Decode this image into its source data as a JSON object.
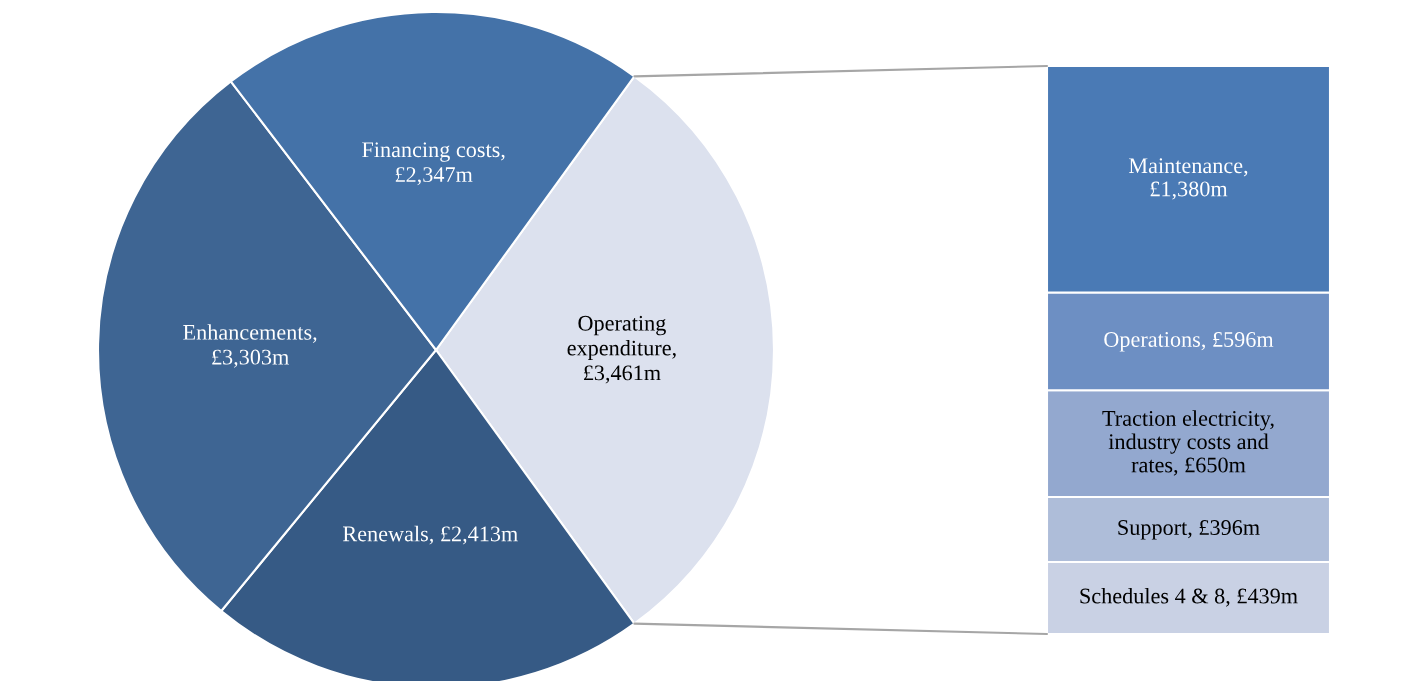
{
  "chart_data": [
    {
      "type": "pie",
      "categories": [
        null,
        null,
        null,
        null
      ],
      "values": [
        3461,
        2413,
        3303,
        2347
      ],
      "value_labels": [
        "Operating\nexpenditure,\n£3,461m",
        "Renewals, £2,413m",
        "Enhancements,\n£3,303m",
        "Financing costs,\n£2,347m"
      ],
      "colors": [
        "#dce1ee",
        "#365a85",
        "#3e6593",
        "#4472a8"
      ]
    },
    {
      "type": "bar",
      "stacked": true,
      "categories": [
        null
      ],
      "tick_labels": false,
      "series": [
        {
          "color": "#c9d1e4",
          "values": [
            439
          ],
          "value_labels": [
            "Schedules 4 & 8, £439m"
          ]
        },
        {
          "color": "#aebdd9",
          "values": [
            396
          ],
          "value_labels": [
            "Support, £396m"
          ]
        },
        {
          "color": "#93a8cf",
          "values": [
            650
          ],
          "value_labels": [
            "Traction electricity,\nindustry costs and\nrates, £650m"
          ]
        },
        {
          "color": "#6d8fc3",
          "values": [
            596
          ],
          "value_labels": [
            "Operations, £596m"
          ]
        },
        {
          "color": "#4a7ab5",
          "values": [
            1380
          ],
          "value_labels": [
            "Maintenance,\n£1,380m"
          ]
        }
      ]
    }
  ]
}
